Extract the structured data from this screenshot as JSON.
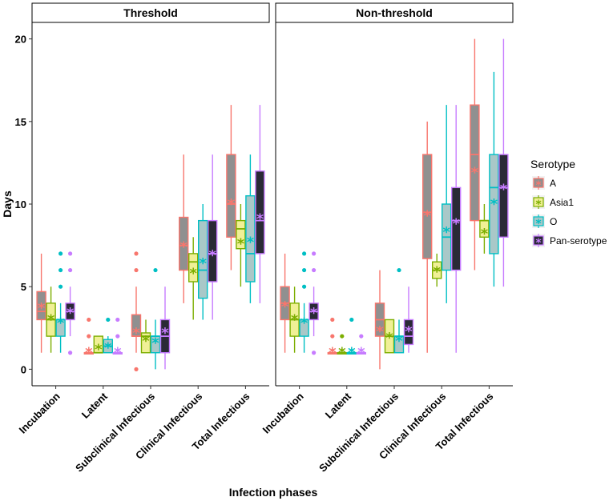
{
  "chart_data": {
    "type": "boxplot",
    "ylabel": "Days",
    "xlabel": "Infection phases",
    "ylim": [
      -1,
      21
    ],
    "yticks": [
      0,
      5,
      10,
      15,
      20
    ],
    "categories": [
      "Incubation",
      "Latent",
      "Subclinical Infectious",
      "Clinical Infectious",
      "Total Infectious"
    ],
    "legend": {
      "title": "Serotype",
      "placement": "right",
      "entries": [
        "A",
        "Asia1",
        "O",
        "Pan-serotype"
      ]
    },
    "colors": {
      "A": "#F8766D",
      "Asia1": "#7CAE00",
      "O": "#00BFC4",
      "Pan-serotype": "#C77CFF"
    },
    "fills": {
      "A": "#909090",
      "Asia1": "#F0F096",
      "O": "#A9C8C8",
      "Pan-serotype": "#2A2A36"
    },
    "facets": [
      {
        "title": "Threshold",
        "groups": [
          {
            "phase": "Incubation",
            "series": [
              {
                "name": "A",
                "min": 1,
                "q1": 3,
                "median": 3.5,
                "q3": 4.7,
                "max": 7,
                "mean": 3.8,
                "outliers": []
              },
              {
                "name": "Asia1",
                "min": 1,
                "q1": 2,
                "median": 3,
                "q3": 4,
                "max": 5,
                "mean": 3.1,
                "outliers": []
              },
              {
                "name": "O",
                "min": 1,
                "q1": 2,
                "median": 3,
                "q3": 3,
                "max": 4,
                "mean": 2.9,
                "outliers": [
                  5,
                  6,
                  7
                ]
              },
              {
                "name": "Pan-serotype",
                "min": 2,
                "q1": 3,
                "median": 3.5,
                "q3": 4,
                "max": 5,
                "mean": 3.5,
                "outliers": [
                  1,
                  6,
                  7
                ]
              }
            ]
          },
          {
            "phase": "Latent",
            "series": [
              {
                "name": "A",
                "min": 1,
                "q1": 1,
                "median": 1,
                "q3": 1,
                "max": 1,
                "mean": 1.1,
                "outliers": [
                  2,
                  3
                ]
              },
              {
                "name": "Asia1",
                "min": 1,
                "q1": 1,
                "median": 1,
                "q3": 2,
                "max": 2,
                "mean": 1.3,
                "outliers": []
              },
              {
                "name": "O",
                "min": 1,
                "q1": 1,
                "median": 1.4,
                "q3": 1.8,
                "max": 2,
                "mean": 1.4,
                "outliers": [
                  3
                ]
              },
              {
                "name": "Pan-serotype",
                "min": 1,
                "q1": 1,
                "median": 1,
                "q3": 1,
                "max": 1,
                "mean": 1.1,
                "outliers": [
                  2,
                  3
                ]
              }
            ]
          },
          {
            "phase": "Subclinical Infectious",
            "series": [
              {
                "name": "A",
                "min": 1,
                "q1": 2,
                "median": 2,
                "q3": 3.3,
                "max": 5,
                "mean": 2.3,
                "outliers": [
                  0,
                  6,
                  7
                ]
              },
              {
                "name": "Asia1",
                "min": 1,
                "q1": 1,
                "median": 2,
                "q3": 2.2,
                "max": 3,
                "mean": 1.8,
                "outliers": []
              },
              {
                "name": "O",
                "min": 0,
                "q1": 1,
                "median": 2,
                "q3": 2,
                "max": 3,
                "mean": 1.7,
                "outliers": [
                  6
                ]
              },
              {
                "name": "Pan-serotype",
                "min": 0,
                "q1": 1,
                "median": 2,
                "q3": 3,
                "max": 5,
                "mean": 2.3,
                "outliers": []
              }
            ]
          },
          {
            "phase": "Clinical Infectious",
            "series": [
              {
                "name": "A",
                "min": 4,
                "q1": 6,
                "median": 7.5,
                "q3": 9.2,
                "max": 13,
                "mean": 7.5,
                "outliers": []
              },
              {
                "name": "Asia1",
                "min": 3,
                "q1": 5.3,
                "median": 6.5,
                "q3": 7,
                "max": 8,
                "mean": 5.9,
                "outliers": []
              },
              {
                "name": "O",
                "min": 3,
                "q1": 4.3,
                "median": 6,
                "q3": 9,
                "max": 10,
                "mean": 6.5,
                "outliers": []
              },
              {
                "name": "Pan-serotype",
                "min": 3,
                "q1": 5.3,
                "median": 7,
                "q3": 9,
                "max": 13,
                "mean": 7,
                "outliers": []
              }
            ]
          },
          {
            "phase": "Total Infectious",
            "series": [
              {
                "name": "A",
                "min": 6,
                "q1": 8,
                "median": 10,
                "q3": 13,
                "max": 16,
                "mean": 10.1,
                "outliers": []
              },
              {
                "name": "Asia1",
                "min": 5,
                "q1": 7.3,
                "median": 8.5,
                "q3": 9,
                "max": 10,
                "mean": 7.7,
                "outliers": []
              },
              {
                "name": "O",
                "min": 4,
                "q1": 5.3,
                "median": 7,
                "q3": 10.5,
                "max": 13,
                "mean": 7.8,
                "outliers": []
              },
              {
                "name": "Pan-serotype",
                "min": 4,
                "q1": 7,
                "median": 9,
                "q3": 12,
                "max": 16,
                "mean": 9.2,
                "outliers": []
              }
            ]
          }
        ]
      },
      {
        "title": "Non-threshold",
        "groups": [
          {
            "phase": "Incubation",
            "series": [
              {
                "name": "A",
                "min": 1,
                "q1": 3,
                "median": 4,
                "q3": 5,
                "max": 7,
                "mean": 3.9,
                "outliers": []
              },
              {
                "name": "Asia1",
                "min": 1,
                "q1": 2,
                "median": 3,
                "q3": 4,
                "max": 5,
                "mean": 3.1,
                "outliers": []
              },
              {
                "name": "O",
                "min": 1,
                "q1": 2,
                "median": 3,
                "q3": 3,
                "max": 4,
                "mean": 2.9,
                "outliers": [
                  5,
                  6,
                  7
                ]
              },
              {
                "name": "Pan-serotype",
                "min": 2,
                "q1": 3,
                "median": 3.5,
                "q3": 4,
                "max": 5,
                "mean": 3.5,
                "outliers": [
                  1,
                  6,
                  7
                ]
              }
            ]
          },
          {
            "phase": "Latent",
            "series": [
              {
                "name": "A",
                "min": 1,
                "q1": 1,
                "median": 1,
                "q3": 1,
                "max": 1,
                "mean": 1.1,
                "outliers": [
                  2,
                  3
                ]
              },
              {
                "name": "Asia1",
                "min": 1,
                "q1": 1,
                "median": 1,
                "q3": 1,
                "max": 1,
                "mean": 1.1,
                "outliers": [
                  2
                ]
              },
              {
                "name": "O",
                "min": 1,
                "q1": 1,
                "median": 1,
                "q3": 1,
                "max": 1,
                "mean": 1.1,
                "outliers": [
                  3
                ]
              },
              {
                "name": "Pan-serotype",
                "min": 1,
                "q1": 1,
                "median": 1,
                "q3": 1,
                "max": 1,
                "mean": 1.1,
                "outliers": [
                  2
                ]
              }
            ]
          },
          {
            "phase": "Subclinical Infectious",
            "series": [
              {
                "name": "A",
                "min": 0,
                "q1": 2,
                "median": 3,
                "q3": 4,
                "max": 6,
                "mean": 2.4,
                "outliers": []
              },
              {
                "name": "Asia1",
                "min": 1,
                "q1": 1,
                "median": 2,
                "q3": 3,
                "max": 3,
                "mean": 2,
                "outliers": []
              },
              {
                "name": "O",
                "min": 1,
                "q1": 1,
                "median": 2,
                "q3": 2,
                "max": 3,
                "mean": 1.8,
                "outliers": [
                  6
                ]
              },
              {
                "name": "Pan-serotype",
                "min": 1,
                "q1": 1.5,
                "median": 2,
                "q3": 3,
                "max": 5,
                "mean": 2.4,
                "outliers": []
              }
            ]
          },
          {
            "phase": "Clinical Infectious",
            "series": [
              {
                "name": "A",
                "min": 1,
                "q1": 6.7,
                "median": 9.5,
                "q3": 13,
                "max": 15,
                "mean": 9.4,
                "outliers": []
              },
              {
                "name": "Asia1",
                "min": 5,
                "q1": 5.5,
                "median": 6,
                "q3": 6.5,
                "max": 7,
                "mean": 6,
                "outliers": []
              },
              {
                "name": "O",
                "min": 4,
                "q1": 6,
                "median": 8,
                "q3": 10,
                "max": 16,
                "mean": 8.4,
                "outliers": []
              },
              {
                "name": "Pan-serotype",
                "min": 1,
                "q1": 6,
                "median": 9,
                "q3": 11,
                "max": 16,
                "mean": 8.9,
                "outliers": []
              }
            ]
          },
          {
            "phase": "Total Infectious",
            "series": [
              {
                "name": "A",
                "min": 6,
                "q1": 9,
                "median": 13,
                "q3": 16,
                "max": 20,
                "mean": 12,
                "outliers": []
              },
              {
                "name": "Asia1",
                "min": 7,
                "q1": 8,
                "median": 9,
                "q3": 9,
                "max": 10,
                "mean": 8.3,
                "outliers": []
              },
              {
                "name": "O",
                "min": 5,
                "q1": 7,
                "median": 11,
                "q3": 13,
                "max": 18,
                "mean": 10.1,
                "outliers": []
              },
              {
                "name": "Pan-serotype",
                "min": 5,
                "q1": 8,
                "median": 11,
                "q3": 13,
                "max": 20,
                "mean": 11,
                "outliers": []
              }
            ]
          }
        ]
      }
    ]
  }
}
